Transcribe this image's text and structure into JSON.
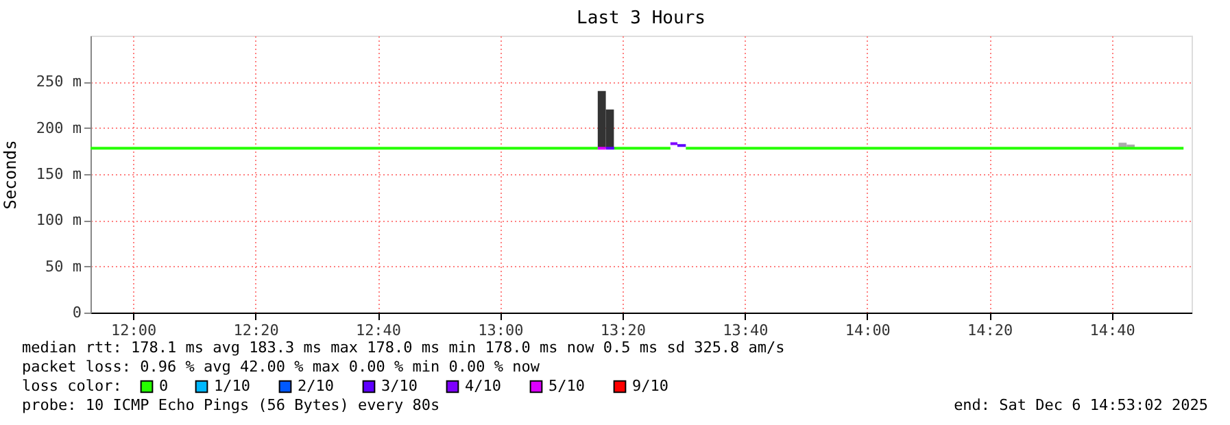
{
  "chart_data": {
    "type": "line",
    "title": "Last 3 Hours",
    "ylabel": "Seconds",
    "xlim": [
      11.884,
      14.884
    ],
    "ylim": [
      0,
      300
    ],
    "xticks": [
      {
        "value": 12,
        "label": "12:00"
      },
      {
        "value": 12.3333,
        "label": "12:20"
      },
      {
        "value": 12.6667,
        "label": "12:40"
      },
      {
        "value": 13,
        "label": "13:00"
      },
      {
        "value": 13.3333,
        "label": "13:20"
      },
      {
        "value": 13.6667,
        "label": "13:40"
      },
      {
        "value": 14,
        "label": "14:00"
      },
      {
        "value": 14.3333,
        "label": "14:20"
      },
      {
        "value": 14.6667,
        "label": "14:40"
      }
    ],
    "yticks": [
      0,
      {
        "value": 50,
        "label": "50 m"
      },
      {
        "value": 100,
        "label": "100 m"
      },
      {
        "value": 150,
        "label": "150 m"
      },
      {
        "value": 200,
        "label": "200 m"
      },
      {
        "value": 250,
        "label": "250 m"
      }
    ],
    "grid": true,
    "legend": "bottom",
    "legend_title": "loss color:",
    "line_style": "solid",
    "marker": "none",
    "series": [
      {
        "type": "bar",
        "color": "#333333",
        "x": [
          13.277,
          13.299
        ],
        "base": [
          178,
          178
        ],
        "values": [
          62,
          42
        ]
      },
      {
        "type": "bar",
        "color": "#aaaaaa",
        "x": [
          14.696,
          14.718
        ],
        "base": [
          178,
          178
        ],
        "values": [
          6,
          4
        ]
      },
      {
        "name": "0",
        "color": "#26ff00",
        "x": [
          11.884,
          13.266,
          13.288,
          13.311,
          13.464,
          13.485,
          13.506,
          14.862
        ],
        "values": [
          178,
          178,
          null,
          178,
          178,
          null,
          178,
          178
        ]
      },
      {
        "name": "1/10",
        "color": "#00b8ff"
      },
      {
        "name": "2/10",
        "color": "#0059ff"
      },
      {
        "name": "3/10",
        "color": "#5e00ff",
        "x": [
          13.288,
          13.311,
          13.4,
          13.483,
          13.506
        ],
        "values": [
          178,
          178,
          null,
          181,
          181
        ]
      },
      {
        "name": "4/10",
        "color": "#7e00ff",
        "x": [
          13.464,
          13.483
        ],
        "values": [
          183,
          183
        ]
      },
      {
        "name": "5/10",
        "color": "#dd00ff",
        "x": [
          13.266,
          13.288
        ],
        "values": [
          178,
          178
        ]
      },
      {
        "name": "9/10",
        "color": "#ff0000"
      }
    ],
    "annotations": [
      "median rtt:  178.1 ms avg  183.3 ms max  178.0 ms min  178.0 ms now  0.5 ms sd  325.8   am/s",
      "packet loss: 0.96 % avg  42.00 % max  0.00 % min  0.00 % now",
      "probe:       10 ICMP Echo Pings (56 Bytes) every 80s",
      "end: Sat Dec  6 14:53:02 2025"
    ]
  }
}
